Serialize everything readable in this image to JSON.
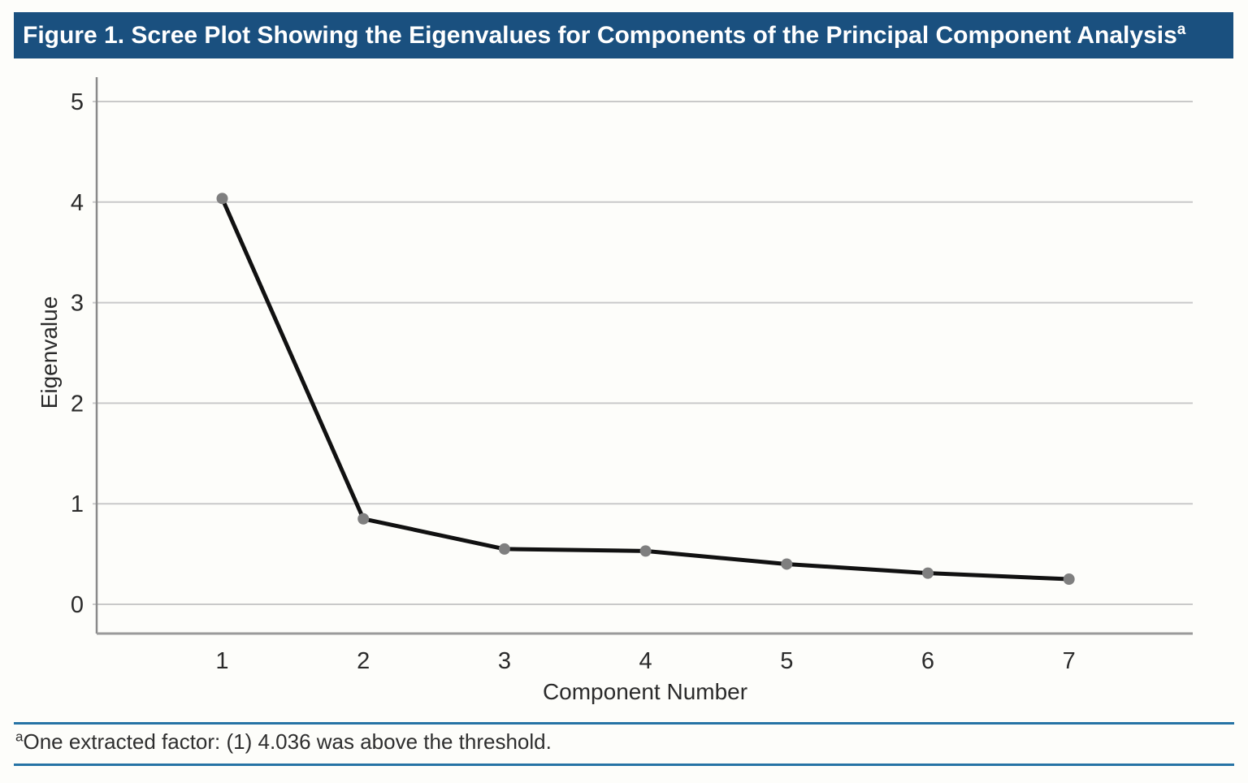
{
  "figure": {
    "title": "Figure 1. Scree Plot Showing the Eigenvalues for Components of the Principal Component Analysis",
    "title_superscript": "a"
  },
  "chart_data": {
    "type": "line",
    "x": [
      1,
      2,
      3,
      4,
      5,
      6,
      7
    ],
    "values": [
      4.036,
      0.85,
      0.55,
      0.53,
      0.4,
      0.31,
      0.25
    ],
    "xlabel": "Component Number",
    "ylabel": "Eigenvalue",
    "xticks": [
      1,
      2,
      3,
      4,
      5,
      6,
      7
    ],
    "yticks": [
      0,
      1,
      2,
      3,
      4,
      5
    ],
    "ylim": [
      -0.29,
      5.25
    ],
    "grid": true,
    "legend": "none",
    "line_color": "#111111",
    "marker_color": "#7f7f7f",
    "gridline_color": "#c9c9c9",
    "axis_color": "#8a8a8a",
    "tick_label_color": "#2b2b2b"
  },
  "footnote": {
    "superscript": "a",
    "text": "One extracted factor: (1) 4.036 was above the threshold."
  },
  "colors": {
    "title_bar_bg": "#1a507f",
    "title_text": "#ffffff",
    "rule_blue": "#2673a5",
    "background": "#fdfdfa"
  }
}
